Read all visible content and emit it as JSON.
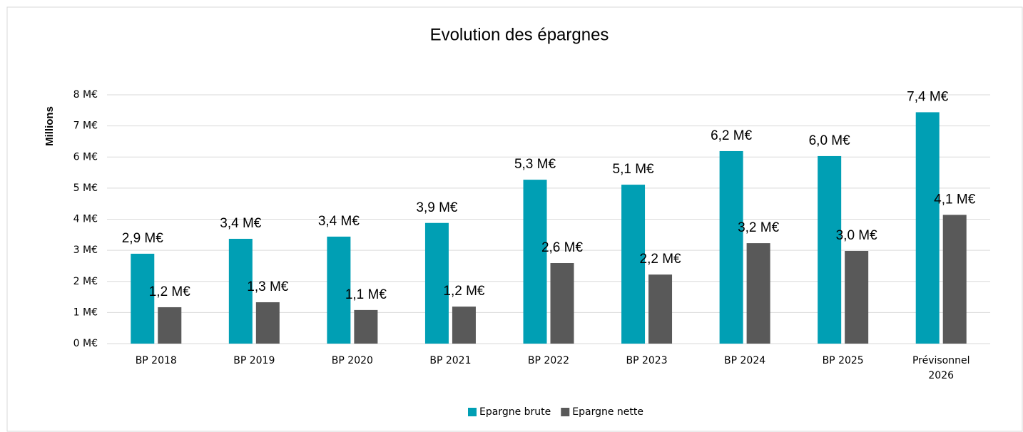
{
  "chart_data": {
    "type": "bar",
    "title": "Evolution des épargnes",
    "y_label": "Millions",
    "categories": [
      "BP 2018",
      "BP 2019",
      "BP 2020",
      "BP 2021",
      "BP 2022",
      "BP 2023",
      "BP 2024",
      "BP 2025",
      "Prévisonnel 2026"
    ],
    "series": [
      {
        "name": "Epargne brute",
        "color": "#009fb4",
        "values": [
          2.89,
          3.37,
          3.44,
          3.88,
          5.27,
          5.11,
          6.19,
          6.03,
          7.44
        ],
        "value_labels": [
          "2,9 M€",
          "3,4 M€",
          "3,4 M€",
          "3,9 M€",
          "5,3 M€",
          "5,1 M€",
          "6,2 M€",
          "6,0 M€",
          "7,4 M€"
        ]
      },
      {
        "name": "Epargne nette",
        "color": "#595959",
        "values": [
          1.17,
          1.33,
          1.08,
          1.19,
          2.59,
          2.22,
          3.23,
          2.98,
          4.14
        ],
        "value_labels": [
          "1,2 M€",
          "1,3 M€",
          "1,1 M€",
          "1,2 M€",
          "2,6 M€",
          "2,2 M€",
          "3,2 M€",
          "3,0 M€",
          "4,1 M€"
        ]
      }
    ],
    "ylim": [
      0,
      8
    ],
    "yticks": [
      {
        "value": 0,
        "label": "0 M€"
      },
      {
        "value": 1,
        "label": "1 M€"
      },
      {
        "value": 2,
        "label": "2 M€"
      },
      {
        "value": 3,
        "label": "3 M€"
      },
      {
        "value": 4,
        "label": "4 M€"
      },
      {
        "value": 5,
        "label": "5 M€"
      },
      {
        "value": 6,
        "label": "6 M€"
      },
      {
        "value": 7,
        "label": "7 M€"
      },
      {
        "value": 8,
        "label": "8 M€"
      }
    ],
    "grid": true,
    "legend": "bottom"
  }
}
